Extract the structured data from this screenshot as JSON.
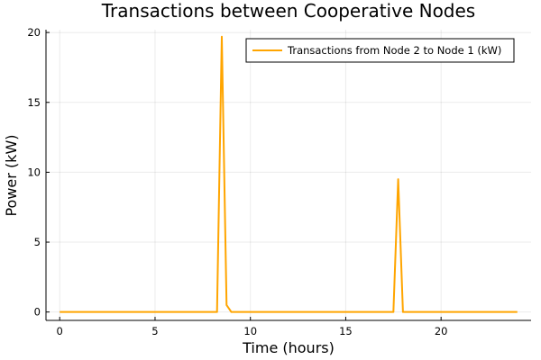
{
  "chart_data": {
    "type": "line",
    "title": "Transactions between Cooperative Nodes",
    "xlabel": "Time (hours)",
    "ylabel": "Power (kW)",
    "xlim": [
      -0.72,
      24.72
    ],
    "ylim": [
      -0.6,
      20.2
    ],
    "xticks": [
      0,
      5,
      10,
      15,
      20
    ],
    "yticks": [
      0,
      5,
      10,
      15,
      20
    ],
    "grid": true,
    "legend_position": "top-right",
    "series": [
      {
        "name": "Transactions from Node 2 to Node 1 (kW)",
        "color": "#FFA500",
        "x": [
          0,
          0.25,
          0.5,
          0.75,
          1,
          1.25,
          1.5,
          1.75,
          2,
          2.25,
          2.5,
          2.75,
          3,
          3.25,
          3.5,
          3.75,
          4,
          4.25,
          4.5,
          4.75,
          5,
          5.25,
          5.5,
          5.75,
          6,
          6.25,
          6.5,
          6.75,
          7,
          7.25,
          7.5,
          7.75,
          8,
          8.25,
          8.5,
          8.75,
          9,
          9.25,
          9.5,
          9.75,
          10,
          10.25,
          10.5,
          10.75,
          11,
          11.25,
          11.5,
          11.75,
          12,
          12.25,
          12.5,
          12.75,
          13,
          13.25,
          13.5,
          13.75,
          14,
          14.25,
          14.5,
          14.75,
          15,
          15.25,
          15.5,
          15.75,
          16,
          16.25,
          16.5,
          16.75,
          17,
          17.25,
          17.5,
          17.75,
          18,
          18.25,
          18.5,
          18.75,
          19,
          19.25,
          19.5,
          19.75,
          20,
          20.25,
          20.5,
          20.75,
          21,
          21.25,
          21.5,
          21.75,
          22,
          22.25,
          22.5,
          22.75,
          23,
          23.25,
          23.5,
          23.75,
          24
        ],
        "y": [
          0,
          0,
          0,
          0,
          0,
          0,
          0,
          0,
          0,
          0,
          0,
          0,
          0,
          0,
          0,
          0,
          0,
          0,
          0,
          0,
          0,
          0,
          0,
          0,
          0,
          0,
          0,
          0,
          0,
          0,
          0,
          0,
          0,
          0,
          19.7,
          0.5,
          0,
          0,
          0,
          0,
          0,
          0,
          0,
          0,
          0,
          0,
          0,
          0,
          0,
          0,
          0,
          0,
          0,
          0,
          0,
          0,
          0,
          0,
          0,
          0,
          0,
          0,
          0,
          0,
          0,
          0,
          0,
          0,
          0,
          0,
          0,
          9.5,
          0,
          0,
          0,
          0,
          0,
          0,
          0,
          0,
          0,
          0,
          0,
          0,
          0,
          0,
          0,
          0,
          0,
          0,
          0,
          0,
          0,
          0,
          0,
          0,
          0
        ]
      }
    ]
  }
}
